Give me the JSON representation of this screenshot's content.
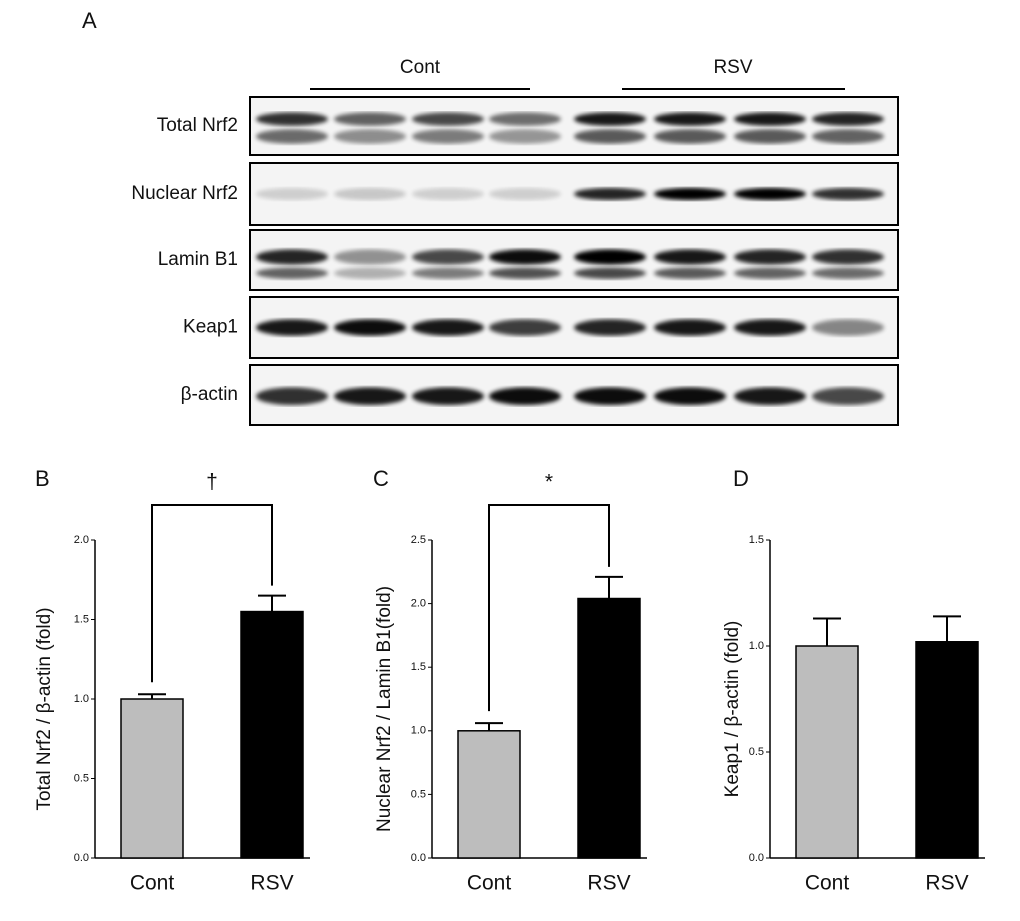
{
  "panel_a": {
    "label": "A",
    "groups": [
      "Cont",
      "RSV"
    ],
    "rows": [
      "Total Nrf2",
      "Nuclear Nrf2",
      "Lamin B1",
      "Keap1",
      "β-actin"
    ]
  },
  "chart_data": [
    {
      "type": "bar",
      "panel": "B",
      "ylabel": "Total Nrf2 / β-actin (fold)",
      "categories": [
        "Cont",
        "RSV"
      ],
      "values": [
        1.0,
        1.55
      ],
      "errors": [
        0.03,
        0.1
      ],
      "colors": [
        "#bdbdbd",
        "#000000"
      ],
      "ylim": [
        0,
        2.0
      ],
      "yticks": [
        {
          "value": 0,
          "label": "0.0"
        },
        {
          "value": 0.5,
          "label": "0.5"
        },
        {
          "value": 1,
          "label": "1.0"
        },
        {
          "value": 1.5,
          "label": "1.5"
        },
        {
          "value": 2,
          "label": "2.0"
        }
      ],
      "annotation": "†"
    },
    {
      "type": "bar",
      "panel": "C",
      "ylabel": "Nuclear Nrf2 / Lamin B1(fold)",
      "categories": [
        "Cont",
        "RSV"
      ],
      "values": [
        1.0,
        2.04
      ],
      "errors": [
        0.06,
        0.17
      ],
      "colors": [
        "#bdbdbd",
        "#000000"
      ],
      "ylim": [
        0,
        2.5
      ],
      "yticks": [
        {
          "value": 0,
          "label": "0.0"
        },
        {
          "value": 0.5,
          "label": "0.5"
        },
        {
          "value": 1,
          "label": "1.0"
        },
        {
          "value": 1.5,
          "label": "1.5"
        },
        {
          "value": 2,
          "label": "2.0"
        },
        {
          "value": 2.5,
          "label": "2.5"
        }
      ],
      "annotation": "*"
    },
    {
      "type": "bar",
      "panel": "D",
      "ylabel": "Keap1 / β-actin (fold)",
      "categories": [
        "Cont",
        "RSV"
      ],
      "values": [
        1.0,
        1.02
      ],
      "errors": [
        0.13,
        0.12
      ],
      "colors": [
        "#bdbdbd",
        "#000000"
      ],
      "ylim": [
        0,
        1.5
      ],
      "yticks": [
        {
          "value": 0,
          "label": "0.0"
        },
        {
          "value": 0.5,
          "label": "0.5"
        },
        {
          "value": 1,
          "label": "1.0"
        },
        {
          "value": 1.5,
          "label": "1.5"
        }
      ]
    }
  ]
}
